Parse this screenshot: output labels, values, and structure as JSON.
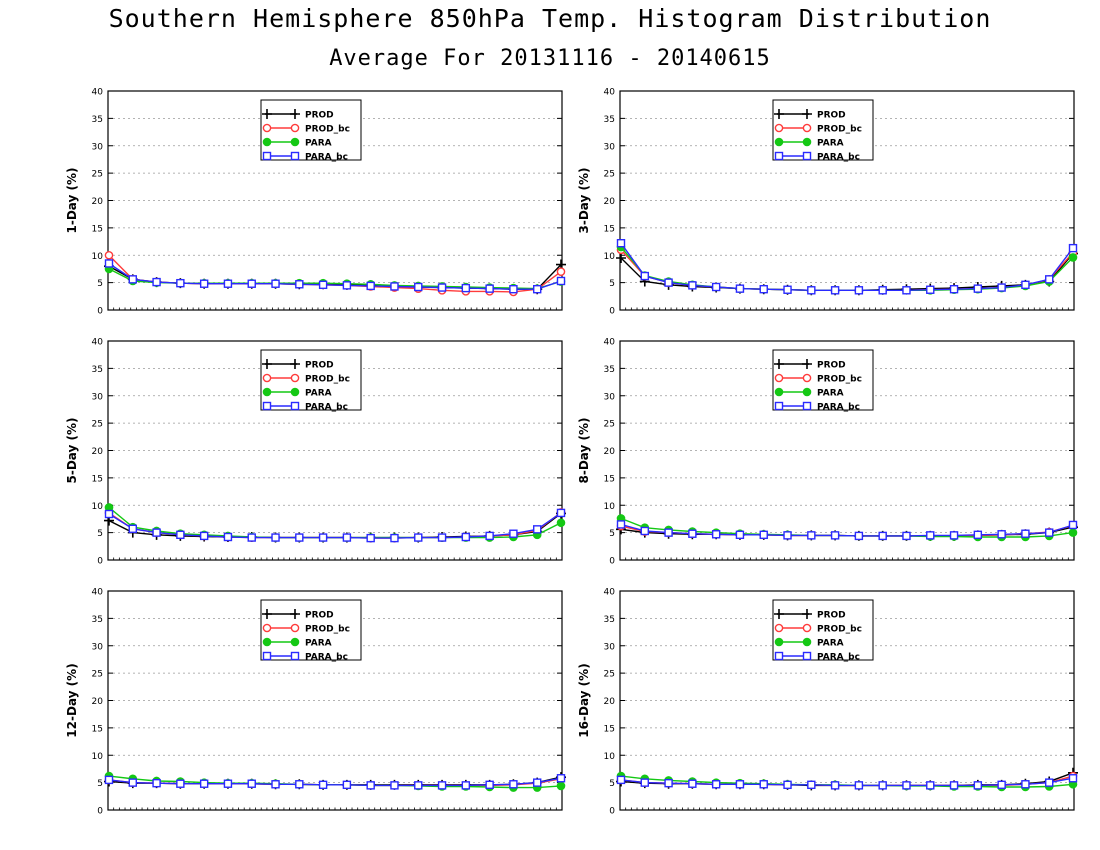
{
  "title": "Southern Hemisphere 850hPa Temp. Histogram Distribution",
  "subtitle": "Average For 20131116 - 20140615",
  "colors": {
    "PROD": "#000000",
    "PROD_bc": "#ff3b3b",
    "PARA": "#14c814",
    "PARA_bc": "#2a2aff"
  },
  "chart_data": [
    {
      "type": "line",
      "ylabel": "1-Day (%)",
      "ylim": [
        0,
        40
      ],
      "yticks": [
        "0",
        "5",
        "10",
        "15",
        "20",
        "25",
        "30",
        "35",
        "40"
      ],
      "grid": true,
      "legend": "top-center",
      "x": [
        1,
        2,
        3,
        4,
        5,
        6,
        7,
        8,
        9,
        10,
        11,
        12,
        13,
        14,
        15,
        16,
        17,
        18,
        19,
        20
      ],
      "series": [
        {
          "name": "PROD",
          "marker": "plus",
          "values": [
            8.0,
            5.6,
            5.1,
            4.9,
            4.8,
            4.8,
            4.8,
            4.8,
            4.7,
            4.7,
            4.6,
            4.5,
            4.3,
            4.2,
            4.1,
            4.0,
            3.9,
            3.8,
            3.8,
            8.3
          ]
        },
        {
          "name": "PROD_bc",
          "marker": "open-circle",
          "values": [
            10.0,
            5.6,
            5.1,
            4.9,
            4.8,
            4.8,
            4.8,
            4.8,
            4.7,
            4.6,
            4.5,
            4.3,
            4.1,
            3.9,
            3.6,
            3.4,
            3.4,
            3.3,
            3.8,
            7.0
          ]
        },
        {
          "name": "PARA",
          "marker": "filled-circle",
          "values": [
            7.5,
            5.3,
            5.0,
            4.9,
            4.9,
            4.9,
            4.9,
            4.9,
            4.9,
            4.9,
            4.8,
            4.7,
            4.5,
            4.4,
            4.3,
            4.2,
            4.1,
            4.0,
            3.9,
            5.2
          ]
        },
        {
          "name": "PARA_bc",
          "marker": "open-square",
          "values": [
            8.5,
            5.6,
            5.1,
            4.9,
            4.8,
            4.8,
            4.8,
            4.8,
            4.7,
            4.6,
            4.5,
            4.4,
            4.3,
            4.2,
            4.1,
            4.0,
            3.9,
            3.8,
            3.8,
            5.3
          ]
        }
      ]
    },
    {
      "type": "line",
      "ylabel": "3-Day (%)",
      "ylim": [
        0,
        40
      ],
      "yticks": [
        "0",
        "5",
        "10",
        "15",
        "20",
        "25",
        "30",
        "35",
        "40"
      ],
      "grid": true,
      "legend": "top-center",
      "x": [
        1,
        2,
        3,
        4,
        5,
        6,
        7,
        8,
        9,
        10,
        11,
        12,
        13,
        14,
        15,
        16,
        17,
        18,
        19,
        20
      ],
      "series": [
        {
          "name": "PROD",
          "marker": "plus",
          "values": [
            9.5,
            5.2,
            4.6,
            4.3,
            4.1,
            3.9,
            3.8,
            3.7,
            3.6,
            3.6,
            3.6,
            3.7,
            3.8,
            3.9,
            4.0,
            4.2,
            4.4,
            4.6,
            5.2,
            10.3
          ]
        },
        {
          "name": "PROD_bc",
          "marker": "open-circle",
          "values": [
            11.0,
            6.2,
            5.0,
            4.5,
            4.2,
            3.9,
            3.8,
            3.7,
            3.6,
            3.6,
            3.6,
            3.6,
            3.6,
            3.7,
            3.8,
            3.9,
            4.1,
            4.5,
            5.6,
            10.5
          ]
        },
        {
          "name": "PARA",
          "marker": "filled-circle",
          "values": [
            11.5,
            6.3,
            5.2,
            4.6,
            4.2,
            3.9,
            3.8,
            3.7,
            3.6,
            3.6,
            3.6,
            3.6,
            3.6,
            3.6,
            3.7,
            3.8,
            4.0,
            4.4,
            5.2,
            9.6
          ]
        },
        {
          "name": "PARA_bc",
          "marker": "open-square",
          "values": [
            12.2,
            6.2,
            5.0,
            4.5,
            4.2,
            3.9,
            3.8,
            3.7,
            3.6,
            3.6,
            3.6,
            3.6,
            3.6,
            3.7,
            3.8,
            3.9,
            4.1,
            4.6,
            5.6,
            11.3
          ]
        }
      ]
    },
    {
      "type": "line",
      "ylabel": "5-Day (%)",
      "ylim": [
        0,
        40
      ],
      "yticks": [
        "0",
        "5",
        "10",
        "15",
        "20",
        "25",
        "30",
        "35",
        "40"
      ],
      "grid": true,
      "legend": "top-center",
      "x": [
        1,
        2,
        3,
        4,
        5,
        6,
        7,
        8,
        9,
        10,
        11,
        12,
        13,
        14,
        15,
        16,
        17,
        18,
        19,
        20
      ],
      "series": [
        {
          "name": "PROD",
          "marker": "plus",
          "values": [
            7.2,
            5.0,
            4.6,
            4.4,
            4.3,
            4.2,
            4.2,
            4.1,
            4.1,
            4.1,
            4.1,
            4.1,
            4.1,
            4.1,
            4.2,
            4.3,
            4.4,
            4.6,
            5.2,
            8.5
          ]
        },
        {
          "name": "PROD_bc",
          "marker": "open-circle",
          "values": [
            8.6,
            5.7,
            5.0,
            4.6,
            4.4,
            4.2,
            4.1,
            4.1,
            4.1,
            4.1,
            4.1,
            4.0,
            4.0,
            4.1,
            4.1,
            4.2,
            4.4,
            4.6,
            5.4,
            8.7
          ]
        },
        {
          "name": "PARA",
          "marker": "filled-circle",
          "values": [
            9.6,
            6.0,
            5.3,
            4.8,
            4.6,
            4.4,
            4.2,
            4.1,
            4.1,
            4.1,
            4.1,
            4.1,
            4.1,
            4.1,
            4.1,
            4.1,
            4.1,
            4.2,
            4.6,
            6.8
          ]
        },
        {
          "name": "PARA_bc",
          "marker": "open-square",
          "values": [
            8.4,
            5.7,
            5.0,
            4.6,
            4.4,
            4.2,
            4.1,
            4.1,
            4.1,
            4.1,
            4.1,
            4.0,
            4.0,
            4.1,
            4.1,
            4.2,
            4.4,
            4.8,
            5.6,
            8.6
          ]
        }
      ]
    },
    {
      "type": "line",
      "ylabel": "8-Day (%)",
      "ylim": [
        0,
        40
      ],
      "yticks": [
        "0",
        "5",
        "10",
        "15",
        "20",
        "25",
        "30",
        "35",
        "40"
      ],
      "grid": true,
      "legend": "top-center",
      "x": [
        1,
        2,
        3,
        4,
        5,
        6,
        7,
        8,
        9,
        10,
        11,
        12,
        13,
        14,
        15,
        16,
        17,
        18,
        19,
        20
      ],
      "series": [
        {
          "name": "PROD",
          "marker": "plus",
          "values": [
            5.6,
            5.0,
            4.8,
            4.7,
            4.7,
            4.6,
            4.6,
            4.5,
            4.5,
            4.5,
            4.4,
            4.4,
            4.4,
            4.4,
            4.4,
            4.5,
            4.6,
            4.7,
            5.0,
            6.0
          ]
        },
        {
          "name": "PROD_bc",
          "marker": "open-circle",
          "values": [
            6.2,
            5.2,
            5.0,
            4.8,
            4.7,
            4.6,
            4.6,
            4.5,
            4.5,
            4.5,
            4.4,
            4.4,
            4.4,
            4.4,
            4.4,
            4.5,
            4.6,
            4.8,
            5.1,
            6.3
          ]
        },
        {
          "name": "PARA",
          "marker": "filled-circle",
          "values": [
            7.6,
            5.9,
            5.5,
            5.2,
            5.0,
            4.8,
            4.7,
            4.6,
            4.5,
            4.5,
            4.4,
            4.4,
            4.4,
            4.3,
            4.3,
            4.2,
            4.2,
            4.2,
            4.4,
            5.0
          ]
        },
        {
          "name": "PARA_bc",
          "marker": "open-square",
          "values": [
            6.5,
            5.3,
            5.0,
            4.8,
            4.7,
            4.6,
            4.6,
            4.5,
            4.5,
            4.5,
            4.4,
            4.4,
            4.4,
            4.5,
            4.5,
            4.6,
            4.7,
            4.8,
            5.0,
            6.4
          ]
        }
      ]
    },
    {
      "type": "line",
      "ylabel": "12-Day (%)",
      "ylim": [
        0,
        40
      ],
      "yticks": [
        "0",
        "5",
        "10",
        "15",
        "20",
        "25",
        "30",
        "35",
        "40"
      ],
      "grid": true,
      "legend": "top-center",
      "x": [
        1,
        2,
        3,
        4,
        5,
        6,
        7,
        8,
        9,
        10,
        11,
        12,
        13,
        14,
        15,
        16,
        17,
        18,
        19,
        20
      ],
      "series": [
        {
          "name": "PROD",
          "marker": "plus",
          "values": [
            5.2,
            4.9,
            4.9,
            4.8,
            4.8,
            4.8,
            4.8,
            4.7,
            4.7,
            4.6,
            4.6,
            4.6,
            4.6,
            4.6,
            4.6,
            4.6,
            4.6,
            4.7,
            5.0,
            6.0
          ]
        },
        {
          "name": "PROD_bc",
          "marker": "open-circle",
          "values": [
            5.5,
            5.0,
            4.9,
            4.8,
            4.8,
            4.8,
            4.8,
            4.7,
            4.7,
            4.6,
            4.6,
            4.5,
            4.5,
            4.5,
            4.5,
            4.5,
            4.5,
            4.6,
            4.9,
            5.7
          ]
        },
        {
          "name": "PARA",
          "marker": "filled-circle",
          "values": [
            6.2,
            5.7,
            5.3,
            5.2,
            5.0,
            4.9,
            4.9,
            4.8,
            4.7,
            4.6,
            4.6,
            4.5,
            4.5,
            4.4,
            4.3,
            4.3,
            4.2,
            4.1,
            4.1,
            4.4
          ]
        },
        {
          "name": "PARA_bc",
          "marker": "open-square",
          "values": [
            5.5,
            5.0,
            4.9,
            4.8,
            4.8,
            4.8,
            4.8,
            4.7,
            4.7,
            4.6,
            4.6,
            4.5,
            4.5,
            4.5,
            4.5,
            4.5,
            4.6,
            4.7,
            5.0,
            5.8
          ]
        }
      ]
    },
    {
      "type": "line",
      "ylabel": "16-Day (%)",
      "ylim": [
        0,
        40
      ],
      "yticks": [
        "0",
        "5",
        "10",
        "15",
        "20",
        "25",
        "30",
        "35",
        "40"
      ],
      "grid": true,
      "legend": "top-center",
      "x": [
        1,
        2,
        3,
        4,
        5,
        6,
        7,
        8,
        9,
        10,
        11,
        12,
        13,
        14,
        15,
        16,
        17,
        18,
        19,
        20
      ],
      "series": [
        {
          "name": "PROD",
          "marker": "plus",
          "values": [
            5.2,
            4.9,
            4.8,
            4.8,
            4.7,
            4.7,
            4.7,
            4.6,
            4.5,
            4.5,
            4.5,
            4.5,
            4.5,
            4.5,
            4.5,
            4.6,
            4.6,
            4.8,
            5.2,
            6.8
          ]
        },
        {
          "name": "PROD_bc",
          "marker": "open-circle",
          "values": [
            5.5,
            5.0,
            4.9,
            4.8,
            4.7,
            4.7,
            4.7,
            4.6,
            4.6,
            4.5,
            4.5,
            4.5,
            4.5,
            4.5,
            4.5,
            4.5,
            4.5,
            4.7,
            5.0,
            6.2
          ]
        },
        {
          "name": "PARA",
          "marker": "filled-circle",
          "values": [
            6.2,
            5.7,
            5.4,
            5.2,
            5.0,
            4.9,
            4.8,
            4.7,
            4.6,
            4.6,
            4.5,
            4.5,
            4.4,
            4.4,
            4.3,
            4.3,
            4.2,
            4.2,
            4.3,
            4.7
          ]
        },
        {
          "name": "PARA_bc",
          "marker": "open-square",
          "values": [
            5.5,
            5.0,
            4.9,
            4.8,
            4.7,
            4.7,
            4.7,
            4.6,
            4.6,
            4.5,
            4.5,
            4.5,
            4.5,
            4.5,
            4.5,
            4.5,
            4.6,
            4.7,
            5.0,
            5.8
          ]
        }
      ]
    }
  ]
}
